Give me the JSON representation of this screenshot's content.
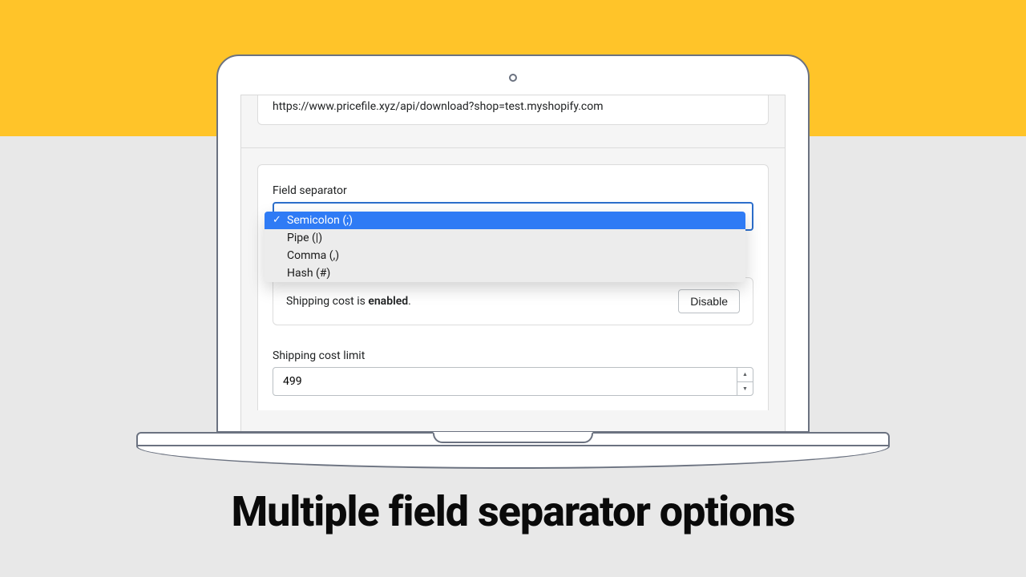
{
  "colors": {
    "yellow": "#ffc429",
    "page_bg": "#e8e8e8",
    "select_border": "#2c6ecb",
    "dropdown_highlight": "#2f7bf5"
  },
  "url_card": {
    "value": "https://www.pricefile.xyz/api/download?shop=test.myshopify.com"
  },
  "field_separator": {
    "label": "Field separator",
    "options": [
      {
        "label": "Semicolon (;)",
        "selected": true
      },
      {
        "label": "Pipe (|)",
        "selected": false
      },
      {
        "label": "Comma (,)",
        "selected": false
      },
      {
        "label": "Hash (#)",
        "selected": false
      }
    ]
  },
  "shipping_cost": {
    "text_prefix": "Shipping cost is ",
    "status_word": "enabled",
    "text_suffix": ".",
    "button_label": "Disable"
  },
  "shipping_limit": {
    "label": "Shipping cost limit",
    "value": "499"
  },
  "headline": "Multiple field separator options"
}
